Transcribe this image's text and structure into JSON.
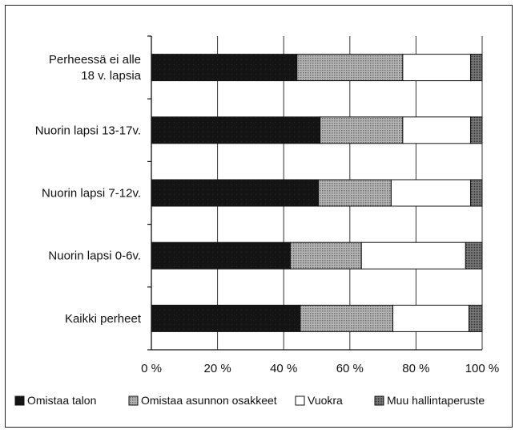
{
  "chart_data": {
    "type": "bar",
    "orientation": "horizontal",
    "stacked": "percent",
    "categories": [
      [
        "Perheessä ei alle",
        "18 v. lapsia"
      ],
      [
        "Nuorin lapsi 13-17v."
      ],
      [
        "Nuorin lapsi 7-12v."
      ],
      [
        "Nuorin lapsi 0-6v."
      ],
      [
        "Kaikki perheet"
      ]
    ],
    "series": [
      {
        "name": "Omistaa talon",
        "color": "#141414",
        "pattern": "solid-dark",
        "values": [
          44,
          51,
          50.5,
          42,
          45
        ]
      },
      {
        "name": "Omistaa asunnon osakkeet",
        "color": "#9a9a9a",
        "pattern": "dotted-gray",
        "values": [
          32,
          25,
          22,
          21.5,
          28
        ]
      },
      {
        "name": "Vuokra",
        "color": "#ffffff",
        "pattern": "white",
        "values": [
          20.5,
          20.5,
          24,
          31.5,
          23
        ]
      },
      {
        "name": "Muu hallintaperuste",
        "color": "#555555",
        "pattern": "dense-gray",
        "values": [
          3.5,
          3.5,
          3.5,
          5,
          4
        ]
      }
    ],
    "xticks": [
      "0 %",
      "20 %",
      "40 %",
      "60 %",
      "80 %",
      "100 %"
    ],
    "xlim": [
      0,
      100
    ],
    "grid": "vertical",
    "legend": "bottom"
  }
}
